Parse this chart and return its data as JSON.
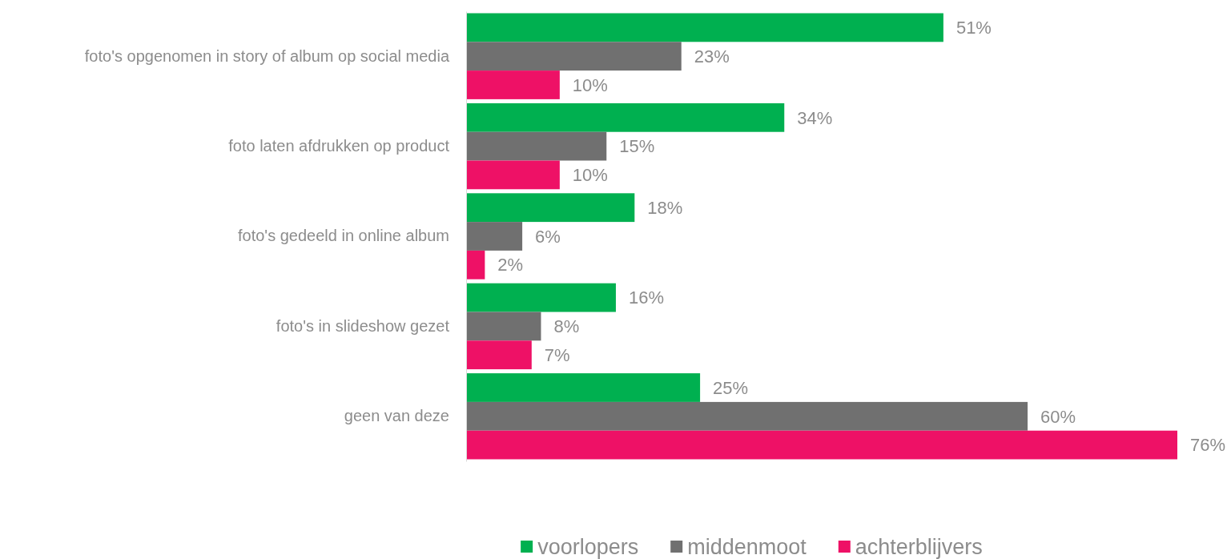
{
  "chart_data": {
    "type": "bar",
    "orientation": "horizontal",
    "categories": [
      "foto's opgenomen in story of album op social media",
      "foto laten afdrukken op product",
      "foto's gedeeld in online album",
      "foto's in slideshow gezet",
      "geen van deze"
    ],
    "series": [
      {
        "name": "voorlopers",
        "color": "#00b050",
        "values": [
          51,
          34,
          18,
          16,
          25
        ],
        "value_labels": [
          "51%",
          "34%",
          "18%",
          "16%",
          "25%"
        ]
      },
      {
        "name": "middenmoot",
        "color": "#707070",
        "values": [
          23,
          15,
          6,
          8,
          60
        ],
        "value_labels": [
          "23%",
          "15%",
          "6%",
          "8%",
          "60%"
        ]
      },
      {
        "name": "achterblijvers",
        "color": "#ee1166",
        "values": [
          10,
          10,
          2,
          7,
          76
        ],
        "value_labels": [
          "10%",
          "10%",
          "2%",
          "7%",
          "76%"
        ]
      }
    ],
    "legend": "bottom"
  }
}
